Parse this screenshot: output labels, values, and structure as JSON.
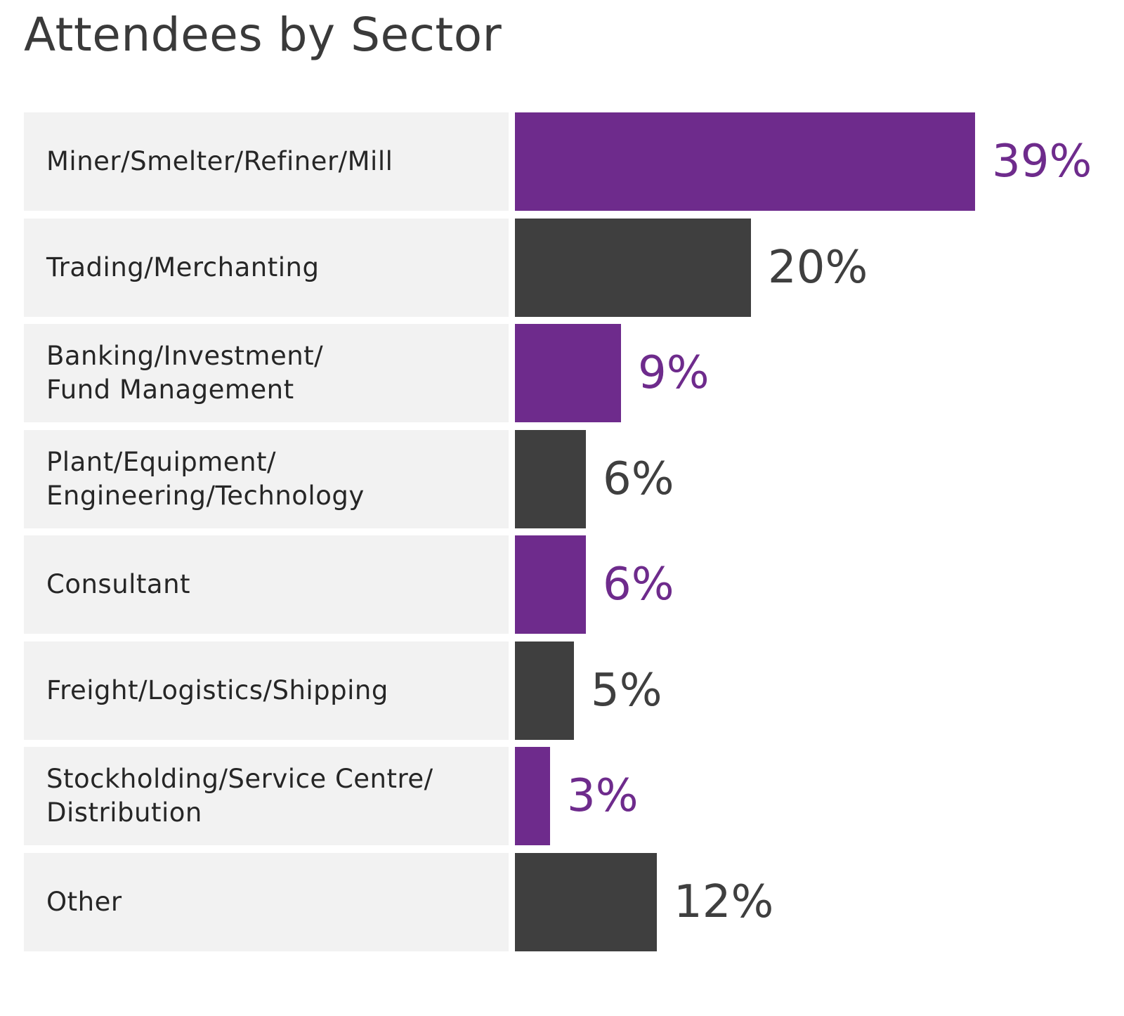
{
  "title": "Attendees by Sector",
  "colors": {
    "purple": "#6e2b8c",
    "dark": "#3f3f3f",
    "row_background": "#f2f2f2"
  },
  "chart_data": {
    "type": "bar",
    "orientation": "horizontal",
    "title": "Attendees by Sector",
    "xlabel": "",
    "ylabel": "",
    "unit": "%",
    "categories": [
      "Miner/Smelter/Refiner/Mill",
      "Trading/Merchanting",
      "Banking/Investment/\nFund Management",
      "Plant/Equipment/\nEngineering/Technology",
      "Consultant",
      "Freight/Logistics/Shipping",
      "Stockholding/Service Centre/\nDistribution",
      "Other"
    ],
    "values": [
      39,
      20,
      9,
      6,
      6,
      5,
      3,
      12
    ],
    "value_labels": [
      "39%",
      "20%",
      "9%",
      "6%",
      "6%",
      "5%",
      "3%",
      "12%"
    ],
    "bar_colors": [
      "purple",
      "dark",
      "purple",
      "dark",
      "purple",
      "dark",
      "purple",
      "dark"
    ],
    "xlim": [
      0,
      50
    ],
    "grid": false,
    "legend": "none"
  }
}
